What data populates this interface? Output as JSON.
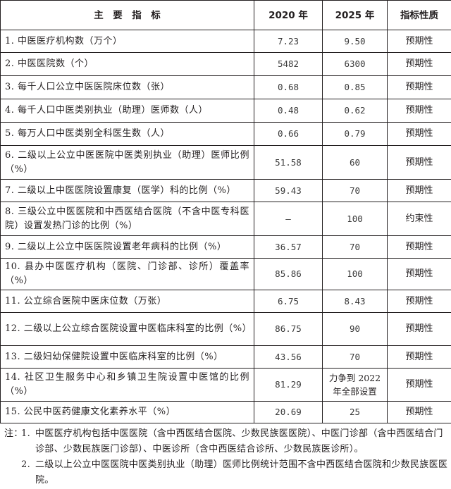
{
  "table": {
    "headers": [
      "主　要　指　标",
      "2020 年",
      "2025 年",
      "指标性质"
    ],
    "rows": [
      {
        "name": "1. 中医医疗机构数（万个）",
        "y2020": "7.23",
        "y2025": "9.50",
        "nature": "预期性"
      },
      {
        "name": "2. 中医医院数（个）",
        "y2020": "5482",
        "y2025": "6300",
        "nature": "预期性"
      },
      {
        "name": "3. 每千人口公立中医医院床位数（张）",
        "y2020": "0.68",
        "y2025": "0.85",
        "nature": "预期性"
      },
      {
        "name": "4. 每千人口中医类别执业（助理）医师数（人）",
        "y2020": "0.48",
        "y2025": "0.62",
        "nature": "预期性"
      },
      {
        "name": "5. 每万人口中医类别全科医生数（人）",
        "y2020": "0.66",
        "y2025": "0.79",
        "nature": "预期性"
      },
      {
        "name": "6. 二级以上公立中医医院中医类别执业（助理）医师比例（%）",
        "y2020": "51.58",
        "y2025": "60",
        "nature": "预期性"
      },
      {
        "name": "7. 二级以上中医医院设置康复（医学）科的比例（%）",
        "y2020": "59.43",
        "y2025": "70",
        "nature": "预期性"
      },
      {
        "name": "8. 三级公立中医医院和中西医结合医院（不含中医专科医院）设置发热门诊的比例（%）",
        "y2020": "—",
        "y2025": "100",
        "nature": "约束性"
      },
      {
        "name": "9. 二级以上公立中医医院设置老年病科的比例（%）",
        "y2020": "36.57",
        "y2025": "70",
        "nature": "预期性"
      },
      {
        "name": "10. 县办中医医疗机构（医院、门诊部、诊所）覆盖率（%）",
        "y2020": "85.86",
        "y2025": "100",
        "nature": "预期性"
      },
      {
        "name": "11. 公立综合医院中医床位数（万张）",
        "y2020": "6.75",
        "y2025": "8.43",
        "nature": "预期性"
      },
      {
        "name": "12. 二级以上公立综合医院设置中医临床科室的比例（%）",
        "y2020": "86.75",
        "y2025": "90",
        "nature": "预期性"
      },
      {
        "name": "13. 二级妇幼保健院设置中医临床科室的比例（%）",
        "y2020": "43.56",
        "y2025": "70",
        "nature": "预期性"
      },
      {
        "name": "14. 社区卫生服务中心和乡镇卫生院设置中医馆的比例（%）",
        "y2020": "81.29",
        "y2025": "力争到 2022 年全部设置",
        "nature": "预期性"
      },
      {
        "name": "15. 公民中医药健康文化素养水平（%）",
        "y2020": "20.69",
        "y2025": "25",
        "nature": "预期性"
      }
    ]
  },
  "notes": {
    "label": "注：",
    "items": [
      {
        "num": "1.",
        "text": "中医医疗机构包括中医医院（含中西医结合医院、少数民族医医院）、中医门诊部（含中西医结合门诊部、少数民族医门诊部）、中医诊所（含中西医结合诊所、少数民族医诊所）。"
      },
      {
        "num": "2.",
        "text": "二级以上公立中医医院中医类别执业（助理）医师比例统计范围不含中西医结合医院和少数民族医医院。"
      }
    ]
  }
}
